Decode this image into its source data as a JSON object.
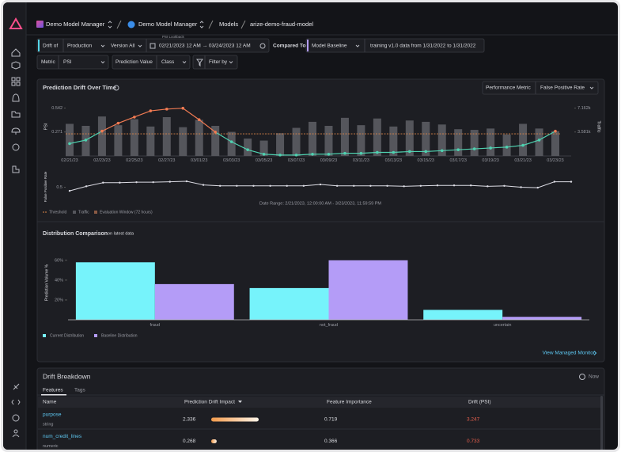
{
  "nav": {
    "breadcrumbs": [
      "Demo Model Manager",
      "Demo Model Manager",
      "Models",
      "arize-demo-fraud-model"
    ]
  },
  "filters": {
    "drift_of": "Drift of",
    "environment": "Production",
    "version": "Version All",
    "lookback_label": "PSI Lookback",
    "date_range": "02/21/2023 12 AM → 03/24/2023 12 AM",
    "compared_to": "Compared To",
    "baseline": "Model Baseline",
    "baseline_desc": "training v1.0 data from 1/31/2022 to 1/31/2022",
    "metric_label": "Metric",
    "metric": "PSI",
    "prediction_value_label": "Prediction Value",
    "class": "Class",
    "filter_by": "Filter by"
  },
  "drift_panel": {
    "title": "Prediction Drift Over Time",
    "performance_metric_label": "Performance Metric",
    "performance_metric": "False Positive Rate",
    "drift_chart": {
      "type": "bar-line",
      "categories": [
        "02/21/23",
        null,
        "02/23/23",
        null,
        "02/25/23",
        null,
        "02/27/23",
        null,
        "03/01/23",
        null,
        "03/03/23",
        null,
        "03/05/23",
        null,
        "03/07/23",
        null,
        "03/09/23",
        null,
        "03/11/23",
        null,
        "03/13/23",
        null,
        "03/15/23",
        null,
        "03/17/23",
        null,
        "03/19/23",
        null,
        "03/21/23",
        null,
        "03/23/23"
      ],
      "ylabel": "PSI",
      "y2label": "Traffic",
      "ylim": [
        0,
        0.6
      ],
      "yticks": [
        0.271,
        0.542
      ],
      "y2lim": [
        0,
        7930
      ],
      "y2ticks": [
        {
          "value": 3581,
          "label": "3.581k"
        },
        {
          "value": 7162,
          "label": "7.162k"
        }
      ],
      "threshold": 0.25,
      "threshold_name": "Threshold",
      "threshold_color": "#e0874a",
      "above_threshold_color": "#f07a52",
      "evaluation_window": "Evaluation Window (72 hours)",
      "evaluation_window_color": "#8a5a44",
      "series": [
        {
          "name": "Traffic",
          "color": "#55565c",
          "axis": "y2",
          "values": [
            4800,
            4500,
            5900,
            4600,
            5500,
            4400,
            5800,
            4300,
            5400,
            4500,
            3600,
            2600,
            2300,
            3400,
            4200,
            5100,
            4500,
            5700,
            4600,
            5600,
            4400,
            5300,
            5100,
            4700,
            4000,
            3900,
            4100,
            3200,
            4800,
            4100,
            3700
          ]
        },
        {
          "name": "PSI",
          "color": "#4fd1b0",
          "values": [
            0.14,
            0.18,
            0.28,
            0.37,
            0.44,
            0.51,
            0.53,
            0.54,
            0.41,
            0.27,
            0.16,
            0.07,
            0.02,
            0.01,
            0.01,
            0.02,
            0.02,
            0.03,
            0.03,
            0.04,
            0.04,
            0.05,
            0.05,
            0.06,
            0.07,
            0.08,
            0.09,
            0.1,
            0.12,
            0.18,
            0.28
          ]
        }
      ]
    },
    "performance_chart": {
      "type": "line",
      "ylabel": "False Positive Rate",
      "ylim": [
        0.3,
        0.7
      ],
      "yticks": [
        0.5
      ],
      "color": "#dcdce4",
      "values": [
        0.42,
        0.52,
        0.6,
        0.6,
        0.61,
        0.61,
        0.62,
        0.63,
        0.55,
        0.53,
        0.53,
        0.53,
        0.53,
        0.53,
        0.53,
        0.56,
        0.53,
        0.53,
        0.53,
        0.53,
        0.52,
        0.53,
        0.54,
        0.54,
        0.54,
        0.52,
        0.53,
        0.5,
        0.49,
        0.62,
        0.62
      ]
    },
    "date_range": "Date Range: 2/21/2023, 12:00:00 AM - 3/23/2023, 11:59:59 PM"
  },
  "distribution_panel": {
    "title": "Distribution Comparison",
    "subtitle": "on latest data",
    "chart": {
      "type": "bar",
      "ylabel": "Prediction Volume %",
      "categories": [
        "fraud",
        "not_fraud",
        "uncertain"
      ],
      "ylim": [
        0,
        75
      ],
      "yticks": [
        {
          "value": 20,
          "label": "20%"
        },
        {
          "value": 40,
          "label": "40%"
        },
        {
          "value": 60,
          "label": "60%"
        }
      ],
      "series": [
        {
          "name": "Current Distribution",
          "color": "#76f3fb",
          "values": [
            58,
            32,
            10
          ]
        },
        {
          "name": "Baseline Distribution",
          "color": "#b49cf7",
          "values": [
            36,
            60,
            3
          ]
        }
      ]
    },
    "link": "View Managed Monitor"
  },
  "breakdown": {
    "title": "Drift Breakdown",
    "time": "Now",
    "tabs": [
      "Features",
      "Tags"
    ],
    "columns": [
      "Name",
      "Prediction Drift Impact",
      "Feature Importance",
      "Drift (PSI)"
    ],
    "rows": [
      {
        "name": "purpose",
        "kind": "string",
        "impact": 2.336,
        "importance": 0.719,
        "drift": 3.247
      },
      {
        "name": "num_credit_lines",
        "kind": "numeric",
        "impact": 0.268,
        "importance": 0.366,
        "drift": 0.733
      }
    ]
  }
}
